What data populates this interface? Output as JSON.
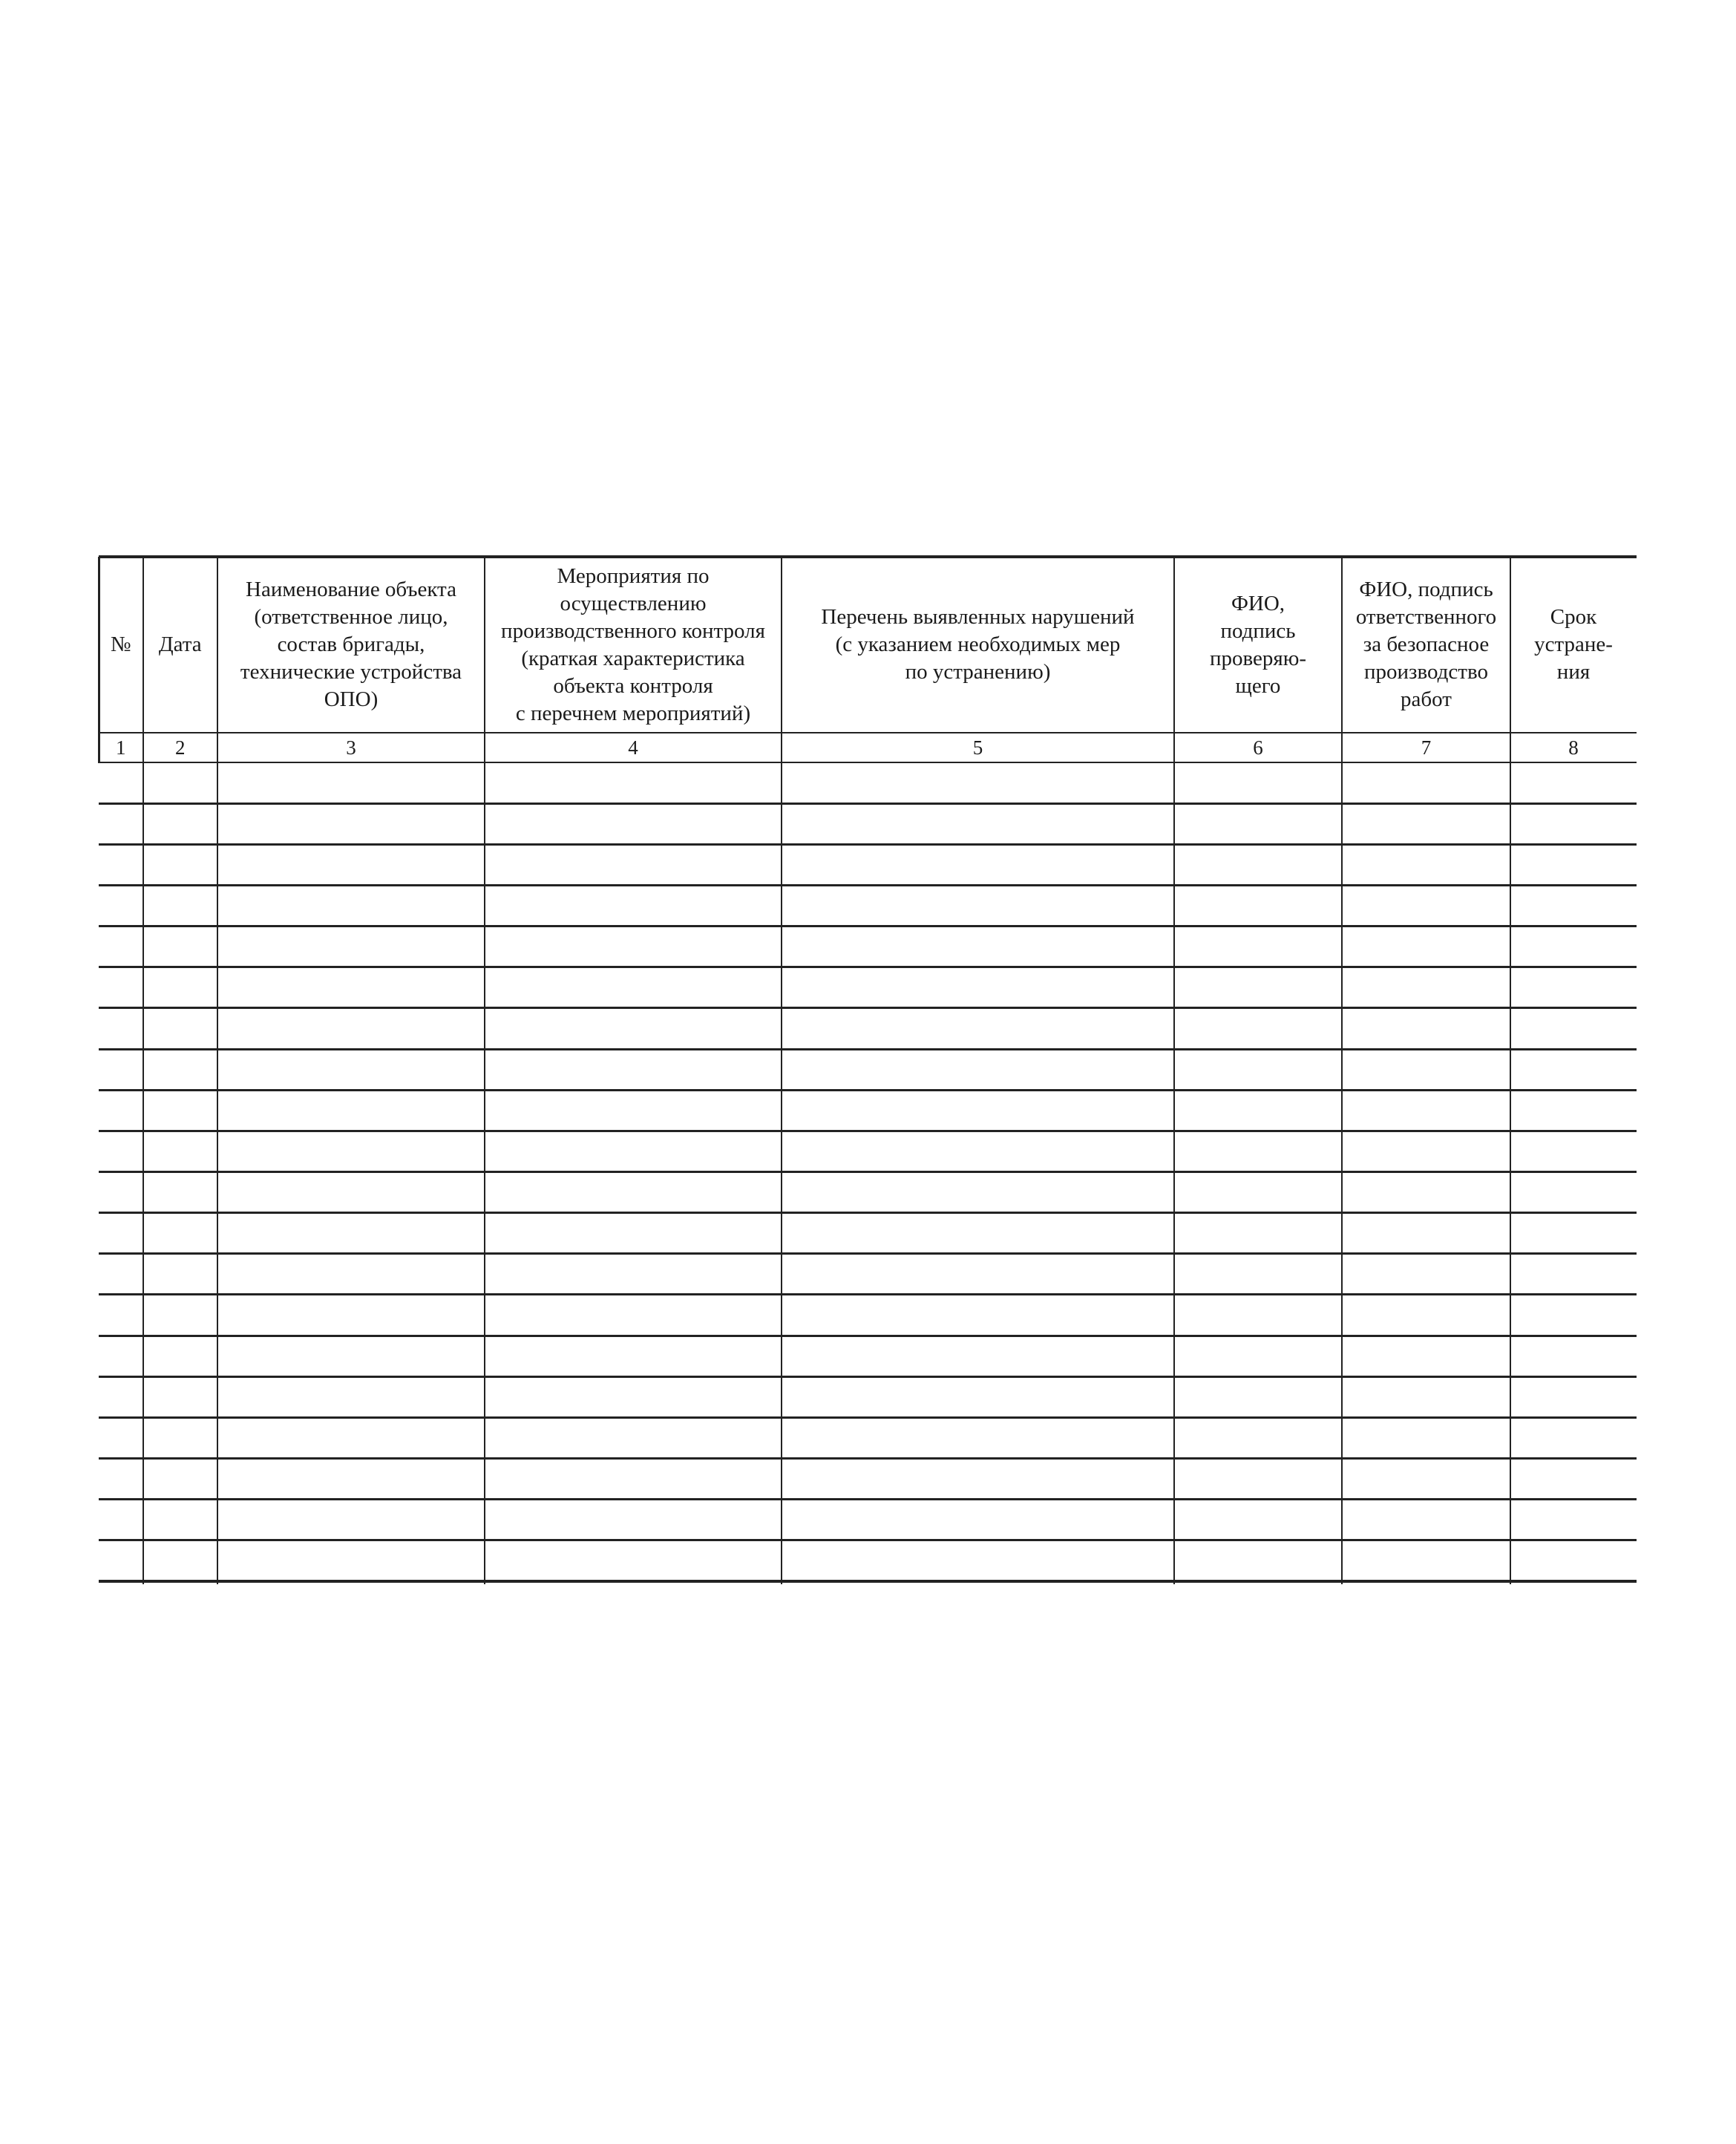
{
  "table": {
    "ink_color": "#222222",
    "columns": [
      {
        "num": "1",
        "header": "№"
      },
      {
        "num": "2",
        "header": "Дата"
      },
      {
        "num": "3",
        "header": "Наименование объекта\n(ответственное лицо,\nсостав бригады,\nтехнические устройства\nОПО)"
      },
      {
        "num": "4",
        "header": "Мероприятия по\nосуществлению\nпроизводственного контроля\n(краткая характеристика\nобъекта контроля\nс перечнем мероприятий)"
      },
      {
        "num": "5",
        "header": "Перечень выявленных нарушений\n(с указанием необходимых мер\nпо устранению)"
      },
      {
        "num": "6",
        "header": "ФИО,\nподпись\nпроверяю-\nщего"
      },
      {
        "num": "7",
        "header": "ФИО, подпись\nответственного\nза безопасное\nпроизводство\nработ"
      },
      {
        "num": "8",
        "header": "Срок\nустране-\nния"
      }
    ],
    "empty_rows": 20,
    "body_cells_content": ""
  }
}
